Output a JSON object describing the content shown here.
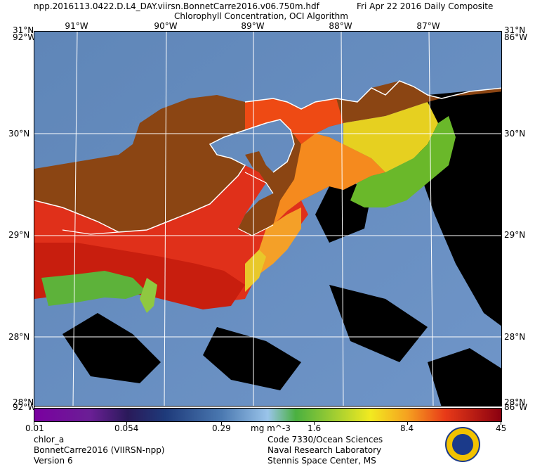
{
  "header": {
    "filename": "npp.2016113.0422.D.L4_DAY.viirsn.BonnetCarre2016.v06.750m.hdf",
    "date": "Fri Apr 22 2016 Daily Composite",
    "subtitle": "Chlorophyll Concentration, OCI Algorithm"
  },
  "map": {
    "longitude_labels": [
      "91°W",
      "90°W",
      "89°W",
      "88°W",
      "87°W"
    ],
    "latitude_labels": [
      "30°N",
      "29°N",
      "28°N"
    ],
    "corner_labels": {
      "top_left_lat": "31°N",
      "top_left_lon": "92°W",
      "top_right_lat": "31°N",
      "top_right_lon": "86°W",
      "bottom_left_lat": "28°N",
      "bottom_left_lon": "92°W",
      "bottom_right_lat": "28°N",
      "bottom_right_lon": "86°W"
    },
    "colors": {
      "land": "#8b4513",
      "clouds": "#000000",
      "coastline": "#ffffff",
      "grid": "#ffffff"
    }
  },
  "colorbar": {
    "tick_labels": [
      "0.01",
      "0.054",
      "0.29",
      "1.6",
      "8.4",
      "45"
    ],
    "units": "mg m^-3"
  },
  "footer": {
    "left": [
      "chlor_a",
      "BonnetCarre2016 (VIIRSN-npp)",
      "Version 6"
    ],
    "right": [
      "Code 7330/Ocean Sciences",
      "Naval Research Laboratory",
      "Stennis Space Center, MS"
    ]
  }
}
